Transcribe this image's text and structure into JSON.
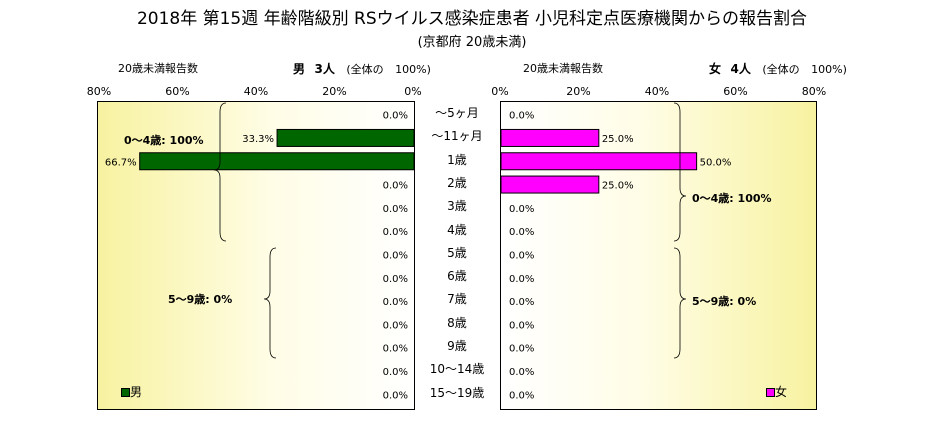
{
  "header": {
    "title": "2018年 第15週 年齢階級別 RSウイルス感染症患者 小児科定点医療機関からの報告割合",
    "subtitle": "(京都府 20歳未満)"
  },
  "left_panel": {
    "axis_label": "20歳未満報告数",
    "sex": "男",
    "count": "3人",
    "total_note": "(全体の",
    "total_pct": "100%)",
    "legend": "男",
    "color": "#006600",
    "groups": [
      {
        "label": "0～4歳: 100%"
      },
      {
        "label": "5～9歳: 0%"
      }
    ]
  },
  "right_panel": {
    "axis_label": "20歳未満報告数",
    "sex": "女",
    "count": "4人",
    "total_note": "(全体の",
    "total_pct": "100%)",
    "legend": "女",
    "color": "#ff00ff",
    "groups": [
      {
        "label": "0～4歳: 100%"
      },
      {
        "label": "5～9歳: 0%"
      }
    ]
  },
  "chart_data": {
    "type": "bar",
    "orientation": "horizontal",
    "categories": [
      "～5ヶ月",
      "～11ヶ月",
      "1歳",
      "2歳",
      "3歳",
      "4歳",
      "5歳",
      "6歳",
      "7歳",
      "8歳",
      "9歳",
      "10～14歳",
      "15～19歳"
    ],
    "ticks_left": [
      "80%",
      "60%",
      "40%",
      "20%",
      "0%"
    ],
    "ticks_right": [
      "0%",
      "20%",
      "40%",
      "60%",
      "80%"
    ],
    "xlim": [
      0,
      80
    ],
    "series": [
      {
        "name": "男",
        "values": [
          0.0,
          33.3,
          66.7,
          0.0,
          0.0,
          0.0,
          0.0,
          0.0,
          0.0,
          0.0,
          0.0,
          0.0,
          0.0
        ],
        "labels": [
          "0.0%",
          "33.3%",
          "66.7%",
          "0.0%",
          "0.0%",
          "0.0%",
          "0.0%",
          "0.0%",
          "0.0%",
          "0.0%",
          "0.0%",
          "0.0%",
          "0.0%"
        ]
      },
      {
        "name": "女",
        "values": [
          0.0,
          25.0,
          50.0,
          25.0,
          0.0,
          0.0,
          0.0,
          0.0,
          0.0,
          0.0,
          0.0,
          0.0,
          0.0
        ],
        "labels": [
          "0.0%",
          "25.0%",
          "50.0%",
          "25.0%",
          "0.0%",
          "0.0%",
          "0.0%",
          "0.0%",
          "0.0%",
          "0.0%",
          "0.0%",
          "0.0%",
          "0.0%"
        ]
      }
    ]
  }
}
